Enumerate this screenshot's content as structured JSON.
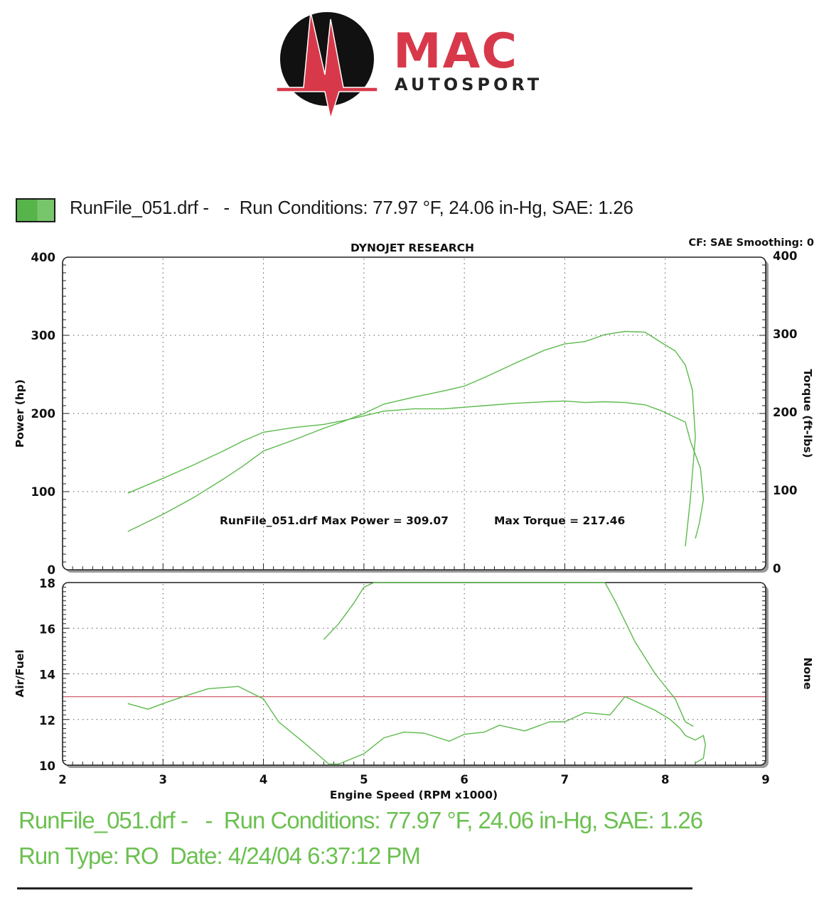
{
  "header": {
    "logo_text_main": "MAC",
    "logo_text_sub": "AUTOSPORT",
    "legend_swatch_color": "#56b44a",
    "legend_text": "RunFile_051.drf -   -  Run Conditions: 77.97 °F, 24.06 in-Hg, SAE: 1.26"
  },
  "chart_data": [
    {
      "type": "line",
      "title": "DYNOJET RESEARCH",
      "corner_note": "CF: SAE  Smoothing: 0",
      "xlabel": "",
      "ylabel": "Power (hp)",
      "ylabel_right": "Torque (ft-lbs)",
      "xlim": [
        2,
        9
      ],
      "ylim": [
        0,
        400
      ],
      "y_ticks": [
        "0",
        "100",
        "200",
        "300",
        "400"
      ],
      "y_ticks_right": [
        "0",
        "100",
        "200",
        "300",
        "400"
      ],
      "grid": true,
      "annotation_max_power": "RunFile_051.drf Max Power = 309.07",
      "annotation_max_torque": "Max Torque = 217.46",
      "series": [
        {
          "color": "#5cba4c",
          "x": [
            2.65,
            3.0,
            3.3,
            3.6,
            3.8,
            4.0,
            4.3,
            4.6,
            4.8,
            5.0,
            5.2,
            5.5,
            5.8,
            6.0,
            6.2,
            6.5,
            6.8,
            7.0,
            7.2,
            7.4,
            7.6,
            7.8,
            7.97,
            8.1,
            8.2,
            8.27,
            8.3,
            8.25,
            8.2
          ],
          "y": [
            49,
            71,
            92,
            116,
            133,
            152,
            166,
            181,
            190,
            200,
            212,
            221,
            229,
            235,
            246,
            264,
            281,
            289,
            292,
            301,
            305,
            304,
            290,
            280,
            262,
            230,
            170,
            90,
            30
          ]
        },
        {
          "color": "#5cba4c",
          "x": [
            2.65,
            3.0,
            3.3,
            3.6,
            3.8,
            4.0,
            4.3,
            4.6,
            4.8,
            5.0,
            5.2,
            5.5,
            5.8,
            6.0,
            6.2,
            6.5,
            6.8,
            7.0,
            7.2,
            7.4,
            7.6,
            7.8,
            7.97,
            8.1,
            8.2,
            8.25,
            8.35,
            8.38,
            8.34,
            8.3
          ],
          "y": [
            98,
            117,
            134,
            152,
            165,
            176,
            182,
            186,
            191,
            197,
            203,
            206,
            206,
            208,
            210,
            213,
            215,
            216,
            214,
            215,
            214,
            211,
            203,
            195,
            189,
            165,
            130,
            90,
            60,
            40
          ]
        }
      ]
    },
    {
      "type": "line",
      "xlabel": "Engine Speed (RPM x1000)",
      "ylabel": "Air/Fuel",
      "ylabel_right": "None",
      "xlim": [
        2,
        9
      ],
      "ylim": [
        10,
        18
      ],
      "x_ticks": [
        "2",
        "3",
        "4",
        "5",
        "6",
        "7",
        "8",
        "9"
      ],
      "y_ticks": [
        "10",
        "12",
        "14",
        "16",
        "18"
      ],
      "grid": true,
      "reference_line": {
        "y": 13.0,
        "color": "#d06070"
      },
      "series": [
        {
          "color": "#5cba4c",
          "x": [
            2.65,
            2.85,
            3.0,
            3.2,
            3.45,
            3.75,
            4.0,
            4.15,
            4.4,
            4.65,
            4.75,
            5.0,
            5.2,
            5.4,
            5.6,
            5.85,
            6.0,
            6.2,
            6.35,
            6.6,
            6.85,
            7.0,
            7.2,
            7.45,
            7.6,
            7.75,
            7.9,
            8.05,
            8.15,
            8.2,
            8.3,
            8.38,
            8.4,
            8.38,
            8.3
          ],
          "y": [
            12.7,
            12.45,
            12.7,
            13.0,
            13.35,
            13.45,
            12.9,
            11.9,
            11.0,
            10.05,
            10.05,
            10.5,
            11.2,
            11.45,
            11.4,
            11.05,
            11.35,
            11.45,
            11.75,
            11.5,
            11.9,
            11.9,
            12.3,
            12.2,
            13.0,
            12.7,
            12.4,
            12.0,
            11.6,
            11.3,
            11.1,
            11.3,
            10.9,
            10.3,
            10.1
          ]
        },
        {
          "color": "#5cba4c",
          "x": [
            4.6,
            4.75,
            4.9,
            5.0,
            5.1,
            5.5,
            6.0,
            6.5,
            7.0,
            7.4,
            7.5,
            7.7,
            7.9,
            8.1,
            8.2,
            8.28
          ],
          "y": [
            15.5,
            16.2,
            17.1,
            17.8,
            18.0,
            18.0,
            18.0,
            18.0,
            18.0,
            18.0,
            17.2,
            15.4,
            14.0,
            12.9,
            11.9,
            11.7
          ]
        }
      ]
    }
  ],
  "footer": {
    "line1": "RunFile_051.drf -   -  Run Conditions: 77.97 °F, 24.06 in-Hg, SAE: 1.26",
    "line2": "Run Type: RO  Date: 4/24/04 6:37:12 PM"
  }
}
